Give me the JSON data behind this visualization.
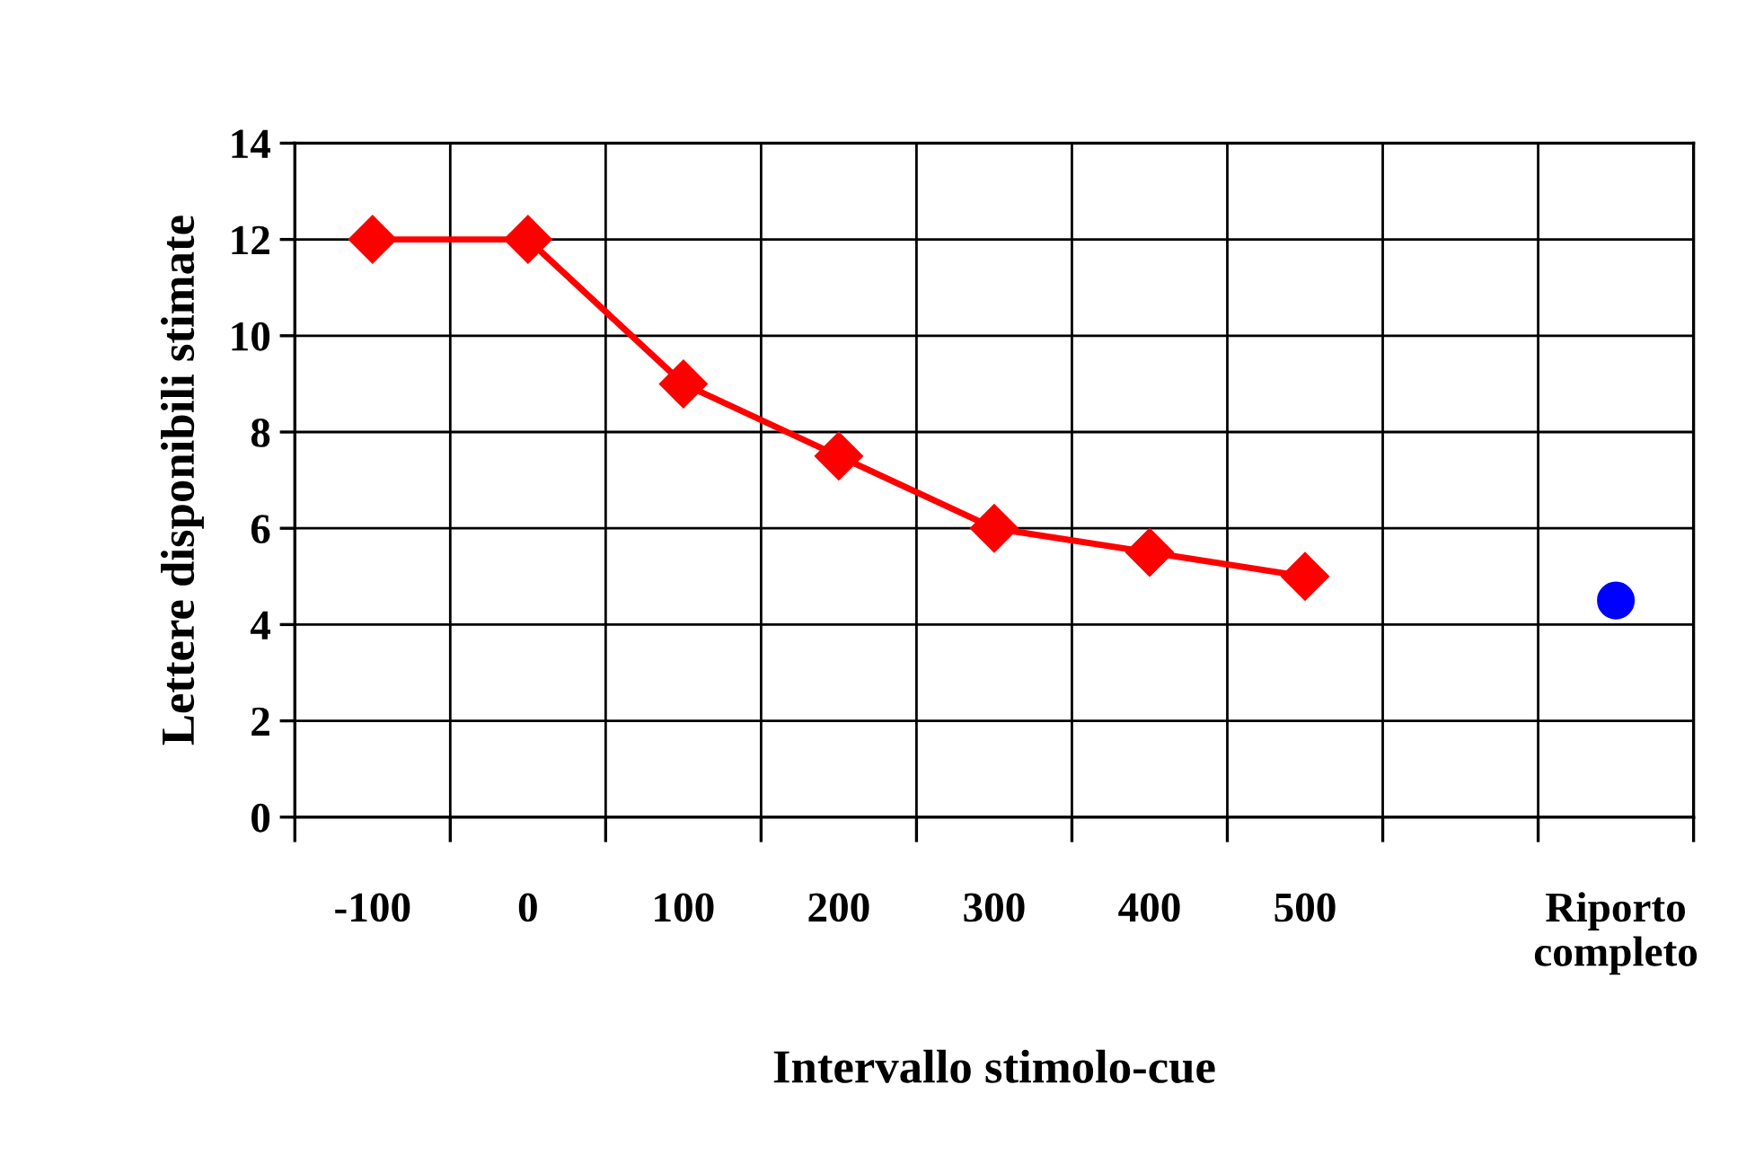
{
  "chart_data": {
    "type": "line",
    "xlabel": "Intervallo stimolo-cue",
    "ylabel": "Lettere disponibili stimate",
    "categories": [
      "-100",
      "0",
      "100",
      "200",
      "300",
      "400",
      "500",
      null,
      "Riporto\ncompleto"
    ],
    "ylim": [
      0,
      14
    ],
    "yticks": [
      0,
      2,
      4,
      6,
      8,
      10,
      12,
      14
    ],
    "grid": true,
    "series": [
      {
        "color": "#ff0000",
        "marker": "diamond",
        "values": [
          12,
          12,
          9,
          7.5,
          6,
          5.5,
          5,
          null,
          null
        ]
      },
      {
        "type": "scatter",
        "color": "#0000ff",
        "marker": "circle",
        "values": [
          null,
          null,
          null,
          null,
          null,
          null,
          null,
          null,
          4.5
        ]
      }
    ]
  }
}
